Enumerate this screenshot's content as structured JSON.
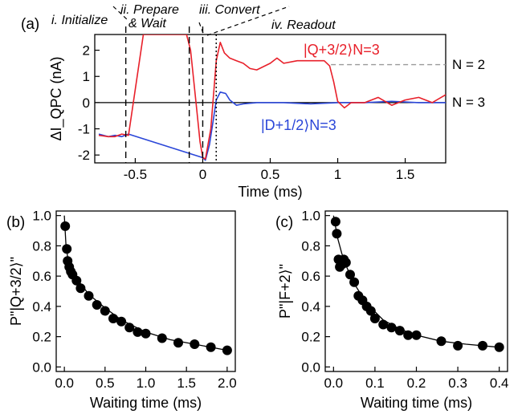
{
  "figure": {
    "panel_a": {
      "label": "(a)",
      "phases": [
        "i. Initialize",
        "ii. Prepare",
        "& Wait",
        "iii. Convert",
        "iv. Readout"
      ],
      "state_labels": [
        "N = 2",
        "N = 3"
      ],
      "legend": {
        "red": "|Q+3/2⟩N=3",
        "blue": "|D+1/2⟩N=3"
      }
    },
    "panel_b": {
      "label": "(b)"
    },
    "panel_c": {
      "label": "(c)"
    }
  },
  "colors": {
    "red": "#e8202a",
    "blue": "#2a46d8",
    "black": "#000000",
    "gray": "#999999"
  },
  "chart_data": [
    {
      "type": "line",
      "panel": "(a)",
      "xlabel": "Time (ms)",
      "ylabel": "ΔI_QPC (nA)",
      "xlim": [
        -0.8,
        1.8
      ],
      "ylim": [
        -2.3,
        2.6
      ],
      "xticks": [
        -0.5,
        0,
        0.5,
        1,
        1.5
      ],
      "xtick_labels": [
        "-0.5",
        "0",
        "0.5",
        "1",
        "1.5"
      ],
      "yticks": [
        -2,
        -1,
        0,
        1,
        2
      ],
      "ytick_labels": [
        "-2",
        "-1",
        "0",
        "1",
        "2"
      ],
      "vlines_dashed": [
        -0.57,
        -0.1,
        0.0
      ],
      "vline_dotted": 0.1,
      "hline_dashed_gray": 1.45,
      "series": [
        {
          "name": "|Q+3/2⟩N=3",
          "color": "red",
          "x": [
            -0.77,
            -0.7,
            -0.65,
            -0.6,
            -0.55,
            -0.5,
            -0.44,
            -0.4,
            -0.12,
            -0.09,
            -0.05,
            -0.02,
            0.0,
            0.02,
            0.06,
            0.1,
            0.13,
            0.16,
            0.2,
            0.25,
            0.3,
            0.35,
            0.4,
            0.5,
            0.55,
            0.6,
            0.7,
            0.8,
            0.9,
            0.94,
            0.97,
            1.0,
            1.05,
            1.1,
            1.2,
            1.3,
            1.4,
            1.5,
            1.6,
            1.7,
            1.8
          ],
          "y": [
            -1.25,
            -1.3,
            -1.3,
            -1.2,
            -1.25,
            0.5,
            2.6,
            2.6,
            2.6,
            2.0,
            0.0,
            -1.5,
            -2.1,
            -2.15,
            -1.0,
            1.6,
            2.3,
            1.9,
            1.7,
            1.6,
            1.5,
            1.3,
            1.25,
            1.5,
            1.7,
            1.5,
            1.6,
            1.6,
            1.6,
            1.4,
            0.8,
            0.05,
            -0.2,
            0.0,
            0.0,
            0.2,
            -0.1,
            0.1,
            0.2,
            0.0,
            0.3
          ]
        },
        {
          "name": "|D+1/2⟩N=3",
          "color": "blue",
          "x": [
            -0.77,
            -0.7,
            -0.65,
            -0.6,
            -0.55,
            0.0,
            0.02,
            0.05,
            0.08,
            0.1,
            0.13,
            0.17,
            0.2,
            0.25,
            0.3,
            0.4,
            0.6,
            0.8,
            1.0,
            1.2,
            1.4,
            1.6,
            1.8
          ],
          "y": [
            -1.2,
            -1.3,
            -1.25,
            -1.3,
            -1.2,
            -2.1,
            -2.2,
            -1.6,
            -0.6,
            0.1,
            0.4,
            0.35,
            0.1,
            -0.1,
            -0.05,
            0.0,
            0.0,
            -0.05,
            0.0,
            0.0,
            0.05,
            0.0,
            0.0
          ]
        }
      ]
    },
    {
      "type": "scatter",
      "panel": "(b)",
      "xlabel": "Waiting time (ms)",
      "ylabel": "P\"|Q+3/2⟩\"",
      "xlim": [
        -0.1,
        2.1
      ],
      "ylim": [
        -0.03,
        1.03
      ],
      "xticks": [
        0.0,
        0.5,
        1.0,
        1.5,
        2.0
      ],
      "xtick_labels": [
        "0.0",
        "0.5",
        "1.0",
        "1.5",
        "2.0"
      ],
      "yticks": [
        0.0,
        0.2,
        0.4,
        0.6,
        0.8,
        1.0
      ],
      "ytick_labels": [
        "0.0",
        "0.2",
        "0.4",
        "0.6",
        "0.8",
        "1.0"
      ],
      "x": [
        0.01,
        0.03,
        0.04,
        0.06,
        0.08,
        0.1,
        0.15,
        0.2,
        0.3,
        0.4,
        0.5,
        0.6,
        0.7,
        0.8,
        0.9,
        1.0,
        1.2,
        1.4,
        1.6,
        1.8,
        2.0
      ],
      "y": [
        0.93,
        0.78,
        0.7,
        0.66,
        0.63,
        0.61,
        0.57,
        0.52,
        0.47,
        0.41,
        0.37,
        0.32,
        0.3,
        0.26,
        0.23,
        0.22,
        0.19,
        0.16,
        0.15,
        0.13,
        0.11
      ],
      "fit": {
        "x": [
          0.0,
          0.02,
          0.05,
          0.1,
          0.2,
          0.3,
          0.5,
          0.7,
          1.0,
          1.3,
          1.6,
          2.0
        ],
        "y": [
          1.0,
          0.8,
          0.69,
          0.63,
          0.55,
          0.48,
          0.39,
          0.31,
          0.23,
          0.18,
          0.15,
          0.11
        ]
      }
    },
    {
      "type": "scatter",
      "panel": "(c)",
      "xlabel": "Waiting time (ms)",
      "ylabel": "P\"|F+2⟩\"",
      "xlim": [
        -0.02,
        0.42
      ],
      "ylim": [
        -0.03,
        1.03
      ],
      "xticks": [
        0.0,
        0.1,
        0.2,
        0.3,
        0.4
      ],
      "xtick_labels": [
        "0.0",
        "0.1",
        "0.2",
        "0.3",
        "0.4"
      ],
      "yticks": [
        0.0,
        0.2,
        0.4,
        0.6,
        0.8,
        1.0
      ],
      "ytick_labels": [
        "0.0",
        "0.2",
        "0.4",
        "0.6",
        "0.8",
        "1.0"
      ],
      "x": [
        0.005,
        0.008,
        0.012,
        0.015,
        0.018,
        0.022,
        0.025,
        0.03,
        0.04,
        0.05,
        0.06,
        0.07,
        0.08,
        0.09,
        0.1,
        0.12,
        0.14,
        0.16,
        0.18,
        0.2,
        0.26,
        0.3,
        0.36,
        0.4
      ],
      "y": [
        0.96,
        0.88,
        0.71,
        0.66,
        0.7,
        0.68,
        0.71,
        0.69,
        0.61,
        0.56,
        0.47,
        0.44,
        0.4,
        0.37,
        0.32,
        0.28,
        0.26,
        0.24,
        0.21,
        0.21,
        0.17,
        0.14,
        0.14,
        0.13
      ],
      "fit": {
        "x": [
          0.0,
          0.01,
          0.02,
          0.03,
          0.05,
          0.08,
          0.12,
          0.16,
          0.2,
          0.26,
          0.32,
          0.4
        ],
        "y": [
          1.0,
          0.85,
          0.75,
          0.67,
          0.55,
          0.42,
          0.31,
          0.25,
          0.21,
          0.17,
          0.15,
          0.13
        ]
      }
    }
  ]
}
